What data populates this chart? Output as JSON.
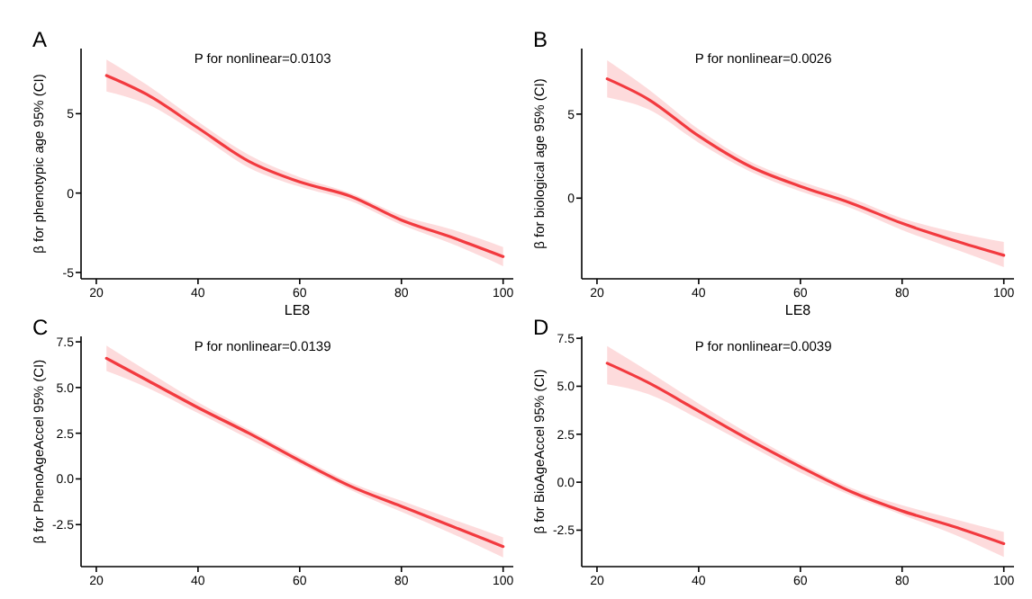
{
  "chart_data": [
    {
      "type": "line",
      "title": "A",
      "annotations": [
        "P for nonlinear=0.0103"
      ],
      "xlabel": "LE8",
      "ylabel": "β for phenotypic age 95% (CI)",
      "x": [
        22,
        30,
        40,
        50,
        60,
        70,
        80,
        90,
        100
      ],
      "xlim": [
        17,
        102
      ],
      "xticks": [
        20,
        40,
        60,
        80,
        100
      ],
      "ylim": [
        -5.4,
        9.1
      ],
      "yticks": [
        -5,
        0,
        5
      ],
      "series": [
        {
          "color": "#f23a3f",
          "values": [
            7.4,
            6.2,
            4.1,
            2.0,
            0.7,
            -0.2,
            -1.7,
            -2.8,
            -4.0
          ],
          "lower": [
            6.4,
            5.6,
            3.7,
            1.6,
            0.4,
            -0.5,
            -2.0,
            -3.2,
            -4.6
          ],
          "upper": [
            8.4,
            6.8,
            4.5,
            2.4,
            1.0,
            0.0,
            -1.4,
            -2.3,
            -3.4
          ]
        }
      ]
    },
    {
      "type": "line",
      "title": "B",
      "annotations": [
        "P for nonlinear=0.0026"
      ],
      "xlabel": "LE8",
      "ylabel": "β for biological age 95% (CI)",
      "x": [
        22,
        30,
        40,
        50,
        60,
        70,
        80,
        90,
        100
      ],
      "xlim": [
        17,
        102
      ],
      "xticks": [
        20,
        40,
        60,
        80,
        100
      ],
      "ylim": [
        -4.8,
        8.9
      ],
      "yticks": [
        0,
        5
      ],
      "series": [
        {
          "color": "#f23a3f",
          "values": [
            7.1,
            5.9,
            3.7,
            1.9,
            0.7,
            -0.3,
            -1.5,
            -2.5,
            -3.4
          ],
          "lower": [
            6.0,
            5.3,
            3.3,
            1.6,
            0.4,
            -0.6,
            -1.9,
            -3.0,
            -4.1
          ],
          "upper": [
            8.2,
            6.5,
            4.1,
            2.2,
            1.0,
            0.0,
            -1.2,
            -2.0,
            -2.6
          ]
        }
      ]
    },
    {
      "type": "line",
      "title": "C",
      "annotations": [
        "P for nonlinear=0.0139"
      ],
      "ylabel": "β for PhenoAgeAccel 95% (CI)",
      "x": [
        22,
        30,
        40,
        50,
        60,
        70,
        80,
        90,
        100
      ],
      "xlim": [
        17,
        102
      ],
      "xticks": [
        20,
        40,
        60,
        80,
        100
      ],
      "ylim": [
        -4.8,
        7.8
      ],
      "yticks": [
        {
          "value": -2.5,
          "label": "-2.5"
        },
        {
          "value": 0,
          "label": "0.0"
        },
        {
          "value": 2.5,
          "label": "2.5"
        },
        {
          "value": 5,
          "label": "5.0"
        },
        {
          "value": 7.5,
          "label": "7.5"
        }
      ],
      "series": [
        {
          "color": "#f23a3f",
          "values": [
            6.6,
            5.4,
            3.9,
            2.5,
            1.0,
            -0.4,
            -1.5,
            -2.6,
            -3.7
          ],
          "lower": [
            5.9,
            5.0,
            3.6,
            2.2,
            0.8,
            -0.6,
            -1.8,
            -3.0,
            -4.3
          ],
          "upper": [
            7.3,
            5.9,
            4.2,
            2.7,
            1.2,
            -0.2,
            -1.2,
            -2.2,
            -3.2
          ]
        }
      ]
    },
    {
      "type": "line",
      "title": "D",
      "annotations": [
        "P for nonlinear=0.0039"
      ],
      "ylabel": "β for BioAgeAccel 95% (CI)",
      "x": [
        22,
        30,
        40,
        50,
        60,
        70,
        80,
        90,
        100
      ],
      "xlim": [
        17,
        102
      ],
      "xticks": [
        20,
        40,
        60,
        80,
        100
      ],
      "ylim": [
        -4.4,
        7.6
      ],
      "yticks": [
        {
          "value": -2.5,
          "label": "-2.5"
        },
        {
          "value": 0,
          "label": "0.0"
        },
        {
          "value": 2.5,
          "label": "2.5"
        },
        {
          "value": 5,
          "label": "5.0"
        },
        {
          "value": 7.5,
          "label": "7.5"
        }
      ],
      "series": [
        {
          "color": "#f23a3f",
          "values": [
            6.2,
            5.2,
            3.7,
            2.2,
            0.8,
            -0.5,
            -1.5,
            -2.3,
            -3.2
          ],
          "lower": [
            5.1,
            4.6,
            3.3,
            1.9,
            0.5,
            -0.7,
            -1.7,
            -2.7,
            -3.9
          ],
          "upper": [
            7.1,
            5.8,
            4.1,
            2.5,
            1.0,
            -0.3,
            -1.2,
            -1.9,
            -2.6
          ]
        }
      ]
    }
  ]
}
